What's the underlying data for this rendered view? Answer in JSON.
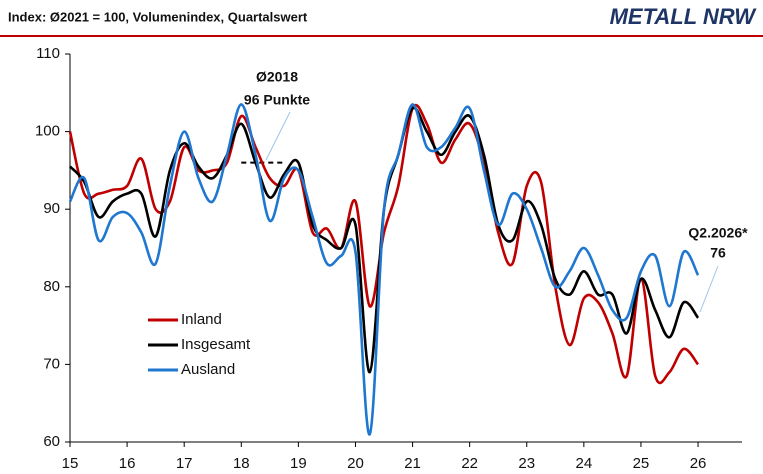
{
  "chart_data": {
    "type": "line",
    "title": "Index: Ø2021 = 100, Volumenindex, Quartalswert",
    "logo": "METALL NRW",
    "x": [
      15,
      15.25,
      15.5,
      15.75,
      16,
      16.25,
      16.5,
      16.75,
      17,
      17.25,
      17.5,
      17.75,
      18,
      18.25,
      18.5,
      18.75,
      19,
      19.25,
      19.5,
      19.75,
      20,
      20.25,
      20.5,
      20.75,
      21,
      21.25,
      21.5,
      21.75,
      22,
      22.25,
      22.5,
      22.75,
      23,
      23.25,
      23.5,
      23.75,
      24,
      24.25,
      24.5,
      24.75,
      25,
      25.25,
      25.5,
      25.75,
      26
    ],
    "series": [
      {
        "name": "Inland",
        "color": "#c00000",
        "values": [
          100,
          92,
          92,
          92.5,
          93,
          96.5,
          90,
          91,
          98,
          95,
          95,
          96,
          102,
          98,
          94,
          93,
          95,
          87,
          87.5,
          85,
          91,
          77.5,
          87,
          93,
          103,
          101,
          96,
          99,
          101,
          96,
          87,
          83,
          93,
          93.5,
          80,
          72.5,
          78.5,
          78,
          74,
          68.5,
          81,
          68.5,
          69,
          72,
          70
        ]
      },
      {
        "name": "Insgesamt",
        "color": "#000000",
        "values": [
          95.5,
          93.5,
          89,
          91,
          92,
          92,
          86.5,
          95,
          98.5,
          95.5,
          94,
          97,
          101,
          96,
          91.5,
          94.5,
          96,
          88,
          86,
          85,
          88,
          69,
          90,
          97,
          103,
          100,
          97,
          100,
          102,
          97,
          88,
          86,
          91,
          88,
          81,
          79,
          82,
          79,
          79,
          74,
          81,
          77,
          73.5,
          78,
          76
        ]
      },
      {
        "name": "Ausland",
        "color": "#1f77d0",
        "values": [
          91,
          94,
          86,
          89,
          89.5,
          87,
          83,
          93,
          100,
          94,
          91,
          97,
          103.5,
          97,
          88.5,
          94,
          95,
          89,
          83,
          84,
          84.5,
          61,
          90,
          97,
          103.5,
          98,
          98,
          100.5,
          103,
          95,
          88,
          92,
          90,
          85,
          80,
          82,
          85,
          81.5,
          77,
          76,
          82,
          84,
          77.5,
          84.5,
          81.5
        ]
      }
    ],
    "reference_line": {
      "value": 96,
      "x": [
        18,
        18.75
      ]
    },
    "annotations": [
      "Ø2018",
      "96 Punkte",
      "Q2.2026*",
      "76"
    ],
    "xlim": [
      15,
      26.77
    ],
    "xticks": [
      15,
      16,
      17,
      18,
      19,
      20,
      21,
      22,
      23,
      24,
      25,
      26
    ],
    "ylim": [
      60,
      110
    ],
    "yticks": [
      60,
      70,
      80,
      90,
      100,
      110
    ],
    "grid": false
  }
}
